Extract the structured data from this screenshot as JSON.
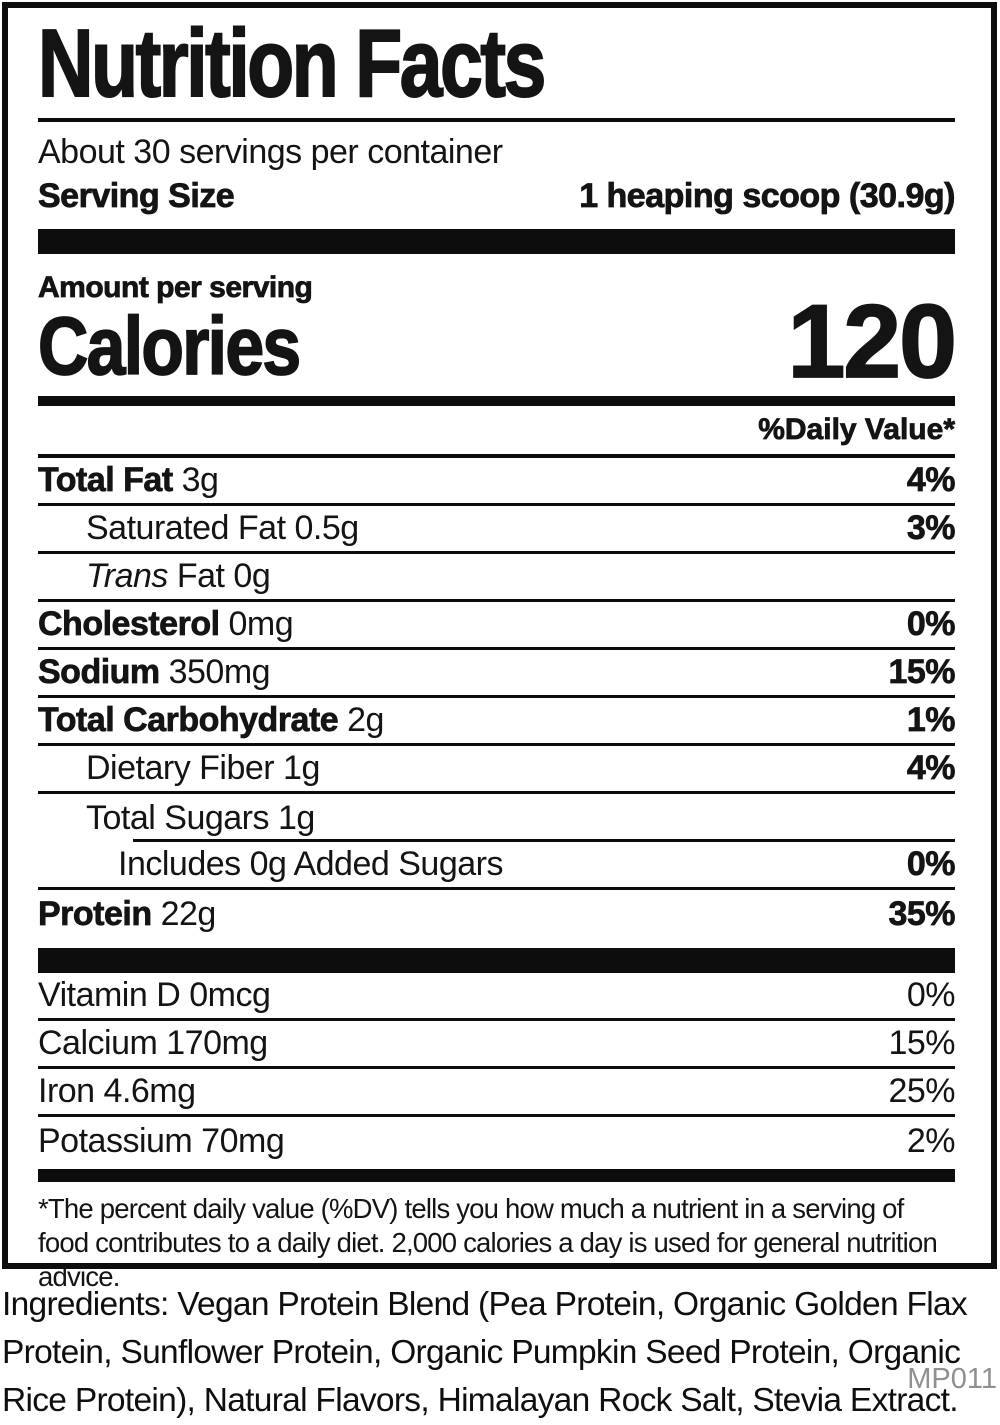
{
  "label": {
    "title": "Nutrition Facts",
    "servings_per_container": "About 30 servings per container",
    "serving_size_label": "Serving Size",
    "serving_size_value": "1 heaping scoop (30.9g)",
    "amount_per_serving": "Amount per serving",
    "calories_label": "Calories",
    "calories_value": "120",
    "daily_value_header": "%Daily Value*",
    "nutrients": [
      {
        "name": "Total Fat",
        "amount": "3g",
        "dv": "4%",
        "indent": 0,
        "bold": true
      },
      {
        "name": "Saturated Fat",
        "amount": "0.5g",
        "dv": "3%",
        "indent": 1,
        "bold": false
      },
      {
        "name": "Fat",
        "italic_prefix": "Trans",
        "amount": "0g",
        "dv": "",
        "indent": 1,
        "bold": false
      },
      {
        "name": "Cholesterol",
        "amount": "0mg",
        "dv": "0%",
        "indent": 0,
        "bold": true
      },
      {
        "name": "Sodium",
        "amount": "350mg",
        "dv": "15%",
        "indent": 0,
        "bold": true
      },
      {
        "name": "Total Carbohydrate",
        "amount": "2g",
        "dv": "1%",
        "indent": 0,
        "bold": true
      },
      {
        "name": "Dietary Fiber",
        "amount": "1g",
        "dv": "4%",
        "indent": 1,
        "bold": false
      },
      {
        "name": "Total Sugars",
        "amount": "1g",
        "dv": "",
        "indent": 1,
        "bold": false,
        "partial_rule": true
      },
      {
        "name": "Includes 0g Added Sugars",
        "amount": "",
        "dv": "0%",
        "indent": 2,
        "bold": false
      },
      {
        "name": "Protein",
        "amount": "22g",
        "dv": "35%",
        "indent": 0,
        "bold": true
      }
    ],
    "micronutrients": [
      {
        "name": "Vitamin D",
        "amount": "0mcg",
        "dv": "0%"
      },
      {
        "name": "Calcium",
        "amount": "170mg",
        "dv": "15%"
      },
      {
        "name": "Iron",
        "amount": "4.6mg",
        "dv": "25%"
      },
      {
        "name": "Potassium",
        "amount": "70mg",
        "dv": "2%"
      }
    ],
    "footnote": "*The percent daily value (%DV) tells you how much a nutrient in a serving of food contributes to a daily diet. 2,000 calories a day is used for general nutrition advice."
  },
  "ingredients": "Ingredients: Vegan Protein Blend (Pea Protein, Organic Golden Flax Protein, Sunflower Protein, Organic Pumpkin Seed Protein, Organic Rice Protein), Natural Flavors, Himalayan Rock Salt, Stevia Extract.",
  "product_code": "MP011",
  "colors": {
    "ink": "#0d0d0d",
    "muted": "#909090"
  }
}
